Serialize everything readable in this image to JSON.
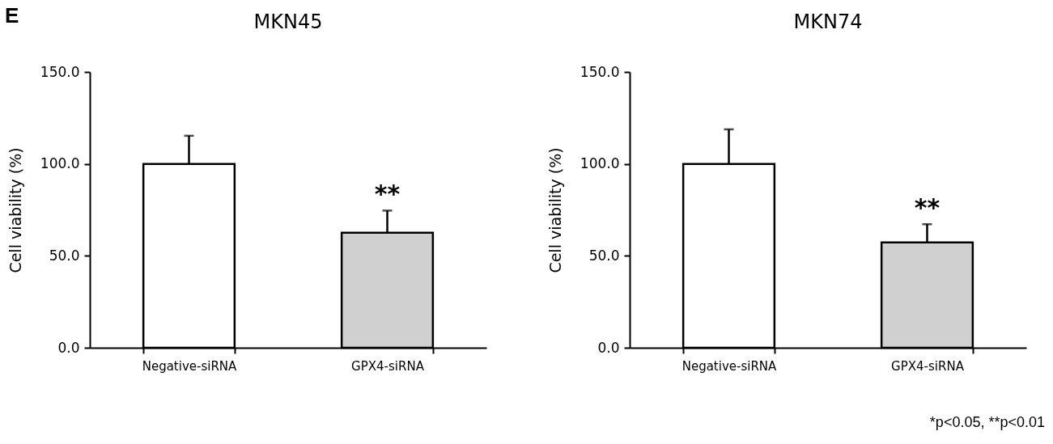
{
  "chart_data": [
    {
      "type": "bar",
      "title": "MKN45",
      "ylabel": "Cell viability (%)",
      "categories": [
        "Negative-siRNA",
        "GPX4-siRNA"
      ],
      "values": [
        100,
        62.6
      ],
      "errors": [
        15.3,
        12
      ],
      "colors": [
        "#ffffff",
        "#d0d0d0"
      ],
      "ylim": [
        0,
        150
      ],
      "yticks": [
        {
          "value": 0,
          "label": "0.0"
        },
        {
          "value": 50,
          "label": "50.0"
        },
        {
          "value": 100,
          "label": "100.0"
        },
        {
          "value": 150,
          "label": "150.0"
        }
      ],
      "annotations": [
        "E",
        {
          "text": "**",
          "x": "GPX4-siRNA",
          "y": 74.6
        }
      ]
    },
    {
      "type": "bar",
      "title": "MKN74",
      "ylabel": "Cell viability (%)",
      "categories": [
        "Negative-siRNA",
        "GPX4-siRNA"
      ],
      "values": [
        100,
        57.3
      ],
      "errors": [
        18.8,
        9.9
      ],
      "colors": [
        "#ffffff",
        "#d0d0d0"
      ],
      "ylim": [
        0,
        150
      ],
      "yticks": [
        {
          "value": 0,
          "label": "0.0"
        },
        {
          "value": 50,
          "label": "50.0"
        },
        {
          "value": 100,
          "label": "100.0"
        },
        {
          "value": 150,
          "label": "150.0"
        }
      ],
      "annotations": [
        {
          "text": "**",
          "x": "GPX4-siRNA",
          "y": 67.2
        },
        "*p<0.05, **p<0.01"
      ]
    }
  ]
}
